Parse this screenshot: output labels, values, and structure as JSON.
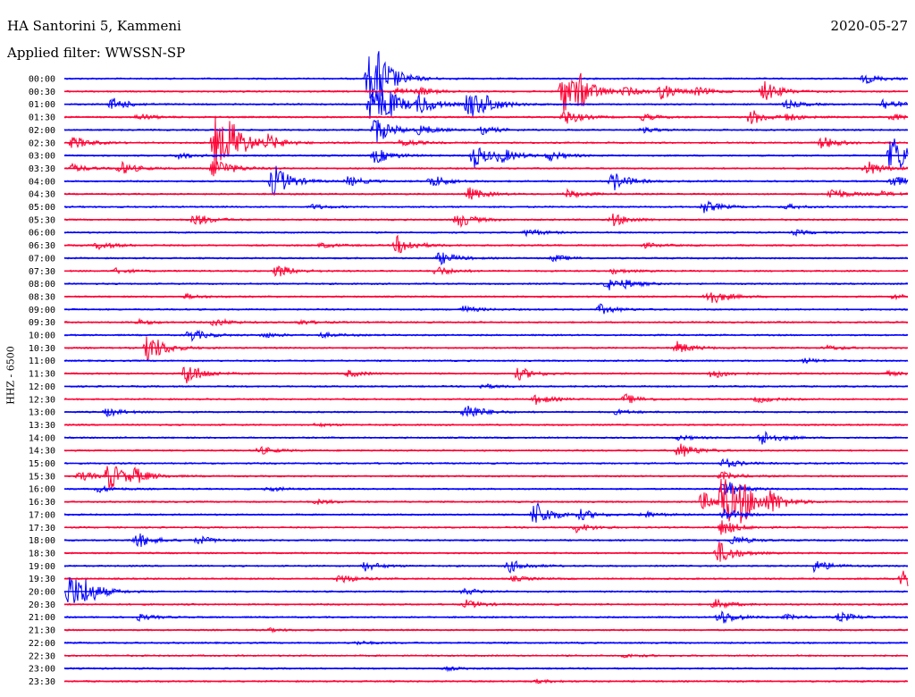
{
  "header": {
    "station": "HA Santorini 5, Kammeni",
    "date": "2020-05-27",
    "filter": "Applied filter: WWSSN-SP"
  },
  "channel_label": "HHZ - 6500",
  "colors": {
    "blue": "#0000ff",
    "red": "#ff0033"
  },
  "rows": [
    {
      "time": "00:00",
      "color": "blue",
      "events": [
        [
          413,
          3.0
        ],
        [
          424,
          2.0
        ],
        [
          968,
          0.6
        ]
      ]
    },
    {
      "time": "00:30",
      "color": "red",
      "events": [
        [
          445,
          0.5
        ],
        [
          470,
          0.4
        ],
        [
          630,
          3.0
        ],
        [
          648,
          1.5
        ],
        [
          700,
          0.5
        ],
        [
          740,
          0.9
        ],
        [
          855,
          1.3
        ],
        [
          778,
          0.5
        ]
      ]
    },
    {
      "time": "01:00",
      "color": "blue",
      "events": [
        [
          126,
          0.8
        ],
        [
          415,
          2.5
        ],
        [
          430,
          1.5
        ],
        [
          470,
          1.2
        ],
        [
          525,
          2.0
        ],
        [
          545,
          0.6
        ],
        [
          880,
          0.5
        ],
        [
          988,
          0.7
        ]
      ]
    },
    {
      "time": "01:30",
      "color": "red",
      "events": [
        [
          155,
          0.4
        ],
        [
          632,
          1.0
        ],
        [
          720,
          0.4
        ],
        [
          840,
          1.0
        ],
        [
          880,
          0.4
        ],
        [
          998,
          0.4
        ]
      ]
    },
    {
      "time": "02:00",
      "color": "blue",
      "events": [
        [
          420,
          1.8
        ],
        [
          470,
          0.6
        ],
        [
          540,
          0.5
        ],
        [
          720,
          0.3
        ]
      ]
    },
    {
      "time": "02:30",
      "color": "red",
      "events": [
        [
          82,
          0.8
        ],
        [
          241,
          3.5
        ],
        [
          258,
          2.0
        ],
        [
          300,
          0.8
        ],
        [
          450,
          0.5
        ],
        [
          920,
          0.8
        ]
      ]
    },
    {
      "time": "03:00",
      "color": "blue",
      "events": [
        [
          200,
          0.4
        ],
        [
          420,
          1.0
        ],
        [
          530,
          1.5
        ],
        [
          560,
          0.8
        ],
        [
          615,
          0.6
        ],
        [
          998,
          3.0
        ]
      ]
    },
    {
      "time": "03:30",
      "color": "red",
      "events": [
        [
          80,
          0.5
        ],
        [
          135,
          0.8
        ],
        [
          240,
          1.5
        ],
        [
          970,
          1.0
        ]
      ]
    },
    {
      "time": "04:00",
      "color": "blue",
      "events": [
        [
          306,
          2.2
        ],
        [
          390,
          0.6
        ],
        [
          483,
          0.8
        ],
        [
          686,
          1.2
        ],
        [
          998,
          0.8
        ]
      ]
    },
    {
      "time": "04:30",
      "color": "red",
      "events": [
        [
          525,
          0.8
        ],
        [
          635,
          0.5
        ],
        [
          930,
          0.8
        ],
        [
          985,
          0.3
        ]
      ]
    },
    {
      "time": "05:00",
      "color": "blue",
      "events": [
        [
          350,
          0.3
        ],
        [
          787,
          0.8
        ],
        [
          880,
          0.3
        ]
      ]
    },
    {
      "time": "05:30",
      "color": "red",
      "events": [
        [
          218,
          0.8
        ],
        [
          512,
          1.0
        ],
        [
          686,
          0.8
        ]
      ]
    },
    {
      "time": "06:00",
      "color": "blue",
      "events": [
        [
          590,
          0.5
        ],
        [
          890,
          0.3
        ]
      ]
    },
    {
      "time": "06:30",
      "color": "red",
      "events": [
        [
          110,
          0.5
        ],
        [
          445,
          1.2
        ],
        [
          360,
          0.3
        ],
        [
          720,
          0.3
        ]
      ]
    },
    {
      "time": "07:00",
      "color": "blue",
      "events": [
        [
          492,
          0.8
        ],
        [
          620,
          0.4
        ]
      ]
    },
    {
      "time": "07:30",
      "color": "red",
      "events": [
        [
          130,
          0.3
        ],
        [
          310,
          0.8
        ],
        [
          488,
          0.6
        ],
        [
          686,
          0.3
        ]
      ]
    },
    {
      "time": "08:00",
      "color": "blue",
      "events": [
        [
          680,
          0.8
        ],
        [
          700,
          0.3
        ]
      ]
    },
    {
      "time": "08:30",
      "color": "red",
      "events": [
        [
          208,
          0.3
        ],
        [
          792,
          1.2
        ],
        [
          1000,
          0.3
        ]
      ]
    },
    {
      "time": "09:00",
      "color": "blue",
      "events": [
        [
          518,
          0.4
        ],
        [
          672,
          0.6
        ]
      ]
    },
    {
      "time": "09:30",
      "color": "red",
      "events": [
        [
          155,
          0.3
        ],
        [
          240,
          0.5
        ],
        [
          335,
          0.3
        ]
      ]
    },
    {
      "time": "10:00",
      "color": "blue",
      "events": [
        [
          212,
          0.8
        ],
        [
          295,
          0.3
        ],
        [
          360,
          0.3
        ]
      ]
    },
    {
      "time": "10:30",
      "color": "red",
      "events": [
        [
          166,
          2.0
        ],
        [
          757,
          0.8
        ],
        [
          925,
          0.3
        ]
      ]
    },
    {
      "time": "11:00",
      "color": "blue",
      "events": [
        [
          900,
          0.3
        ]
      ]
    },
    {
      "time": "11:30",
      "color": "red",
      "events": [
        [
          208,
          1.5
        ],
        [
          390,
          0.4
        ],
        [
          580,
          0.8
        ],
        [
          797,
          0.6
        ],
        [
          990,
          0.3
        ]
      ]
    },
    {
      "time": "12:00",
      "color": "blue",
      "events": [
        [
          540,
          0.3
        ]
      ]
    },
    {
      "time": "12:30",
      "color": "red",
      "events": [
        [
          600,
          0.6
        ],
        [
          700,
          0.6
        ],
        [
          848,
          0.4
        ]
      ]
    },
    {
      "time": "13:00",
      "color": "blue",
      "events": [
        [
          120,
          0.5
        ],
        [
          521,
          1.2
        ],
        [
          690,
          0.3
        ]
      ]
    },
    {
      "time": "13:30",
      "color": "red",
      "events": [
        [
          355,
          0.2
        ]
      ]
    },
    {
      "time": "14:00",
      "color": "blue",
      "events": [
        [
          852,
          1.0
        ],
        [
          760,
          0.3
        ]
      ]
    },
    {
      "time": "14:30",
      "color": "red",
      "events": [
        [
          290,
          0.5
        ],
        [
          760,
          1.0
        ]
      ]
    },
    {
      "time": "15:00",
      "color": "blue",
      "events": [
        [
          810,
          0.6
        ]
      ]
    },
    {
      "time": "15:30",
      "color": "red",
      "events": [
        [
          90,
          0.6
        ],
        [
          122,
          1.8
        ],
        [
          150,
          0.8
        ],
        [
          808,
          0.5
        ]
      ]
    },
    {
      "time": "16:00",
      "color": "blue",
      "events": [
        [
          110,
          0.4
        ],
        [
          300,
          0.3
        ],
        [
          810,
          1.2
        ]
      ]
    },
    {
      "time": "16:30",
      "color": "red",
      "events": [
        [
          786,
          1.2
        ],
        [
          808,
          3.8
        ],
        [
          830,
          2.0
        ],
        [
          862,
          1.2
        ],
        [
          355,
          0.3
        ]
      ]
    },
    {
      "time": "17:00",
      "color": "blue",
      "events": [
        [
          598,
          1.8
        ],
        [
          650,
          0.6
        ],
        [
          810,
          0.8
        ],
        [
          720,
          0.4
        ]
      ]
    },
    {
      "time": "17:30",
      "color": "red",
      "events": [
        [
          645,
          0.6
        ],
        [
          808,
          1.0
        ]
      ]
    },
    {
      "time": "18:00",
      "color": "blue",
      "events": [
        [
          153,
          1.0
        ],
        [
          222,
          0.5
        ],
        [
          820,
          0.6
        ]
      ]
    },
    {
      "time": "18:30",
      "color": "red",
      "events": [
        [
          804,
          1.5
        ]
      ]
    },
    {
      "time": "19:00",
      "color": "blue",
      "events": [
        [
          408,
          0.6
        ],
        [
          570,
          0.8
        ],
        [
          912,
          0.8
        ]
      ]
    },
    {
      "time": "19:30",
      "color": "red",
      "events": [
        [
          380,
          0.6
        ],
        [
          575,
          0.3
        ],
        [
          1010,
          2.0
        ]
      ]
    },
    {
      "time": "20:00",
      "color": "blue",
      "events": [
        [
          78,
          2.5
        ],
        [
          95,
          1.0
        ],
        [
          520,
          0.4
        ]
      ]
    },
    {
      "time": "20:30",
      "color": "red",
      "events": [
        [
          522,
          0.5
        ],
        [
          800,
          0.6
        ]
      ]
    },
    {
      "time": "21:00",
      "color": "blue",
      "events": [
        [
          155,
          0.4
        ],
        [
          805,
          1.0
        ],
        [
          940,
          0.6
        ],
        [
          880,
          0.3
        ]
      ]
    },
    {
      "time": "21:30",
      "color": "red",
      "events": [
        [
          300,
          0.2
        ]
      ]
    },
    {
      "time": "22:00",
      "color": "blue",
      "events": [
        [
          400,
          0.2
        ]
      ]
    },
    {
      "time": "22:30",
      "color": "red",
      "events": [
        [
          700,
          0.2
        ]
      ]
    },
    {
      "time": "23:00",
      "color": "blue",
      "events": [
        [
          500,
          0.2
        ]
      ]
    },
    {
      "time": "23:30",
      "color": "red",
      "events": [
        [
          600,
          0.2
        ]
      ]
    }
  ]
}
